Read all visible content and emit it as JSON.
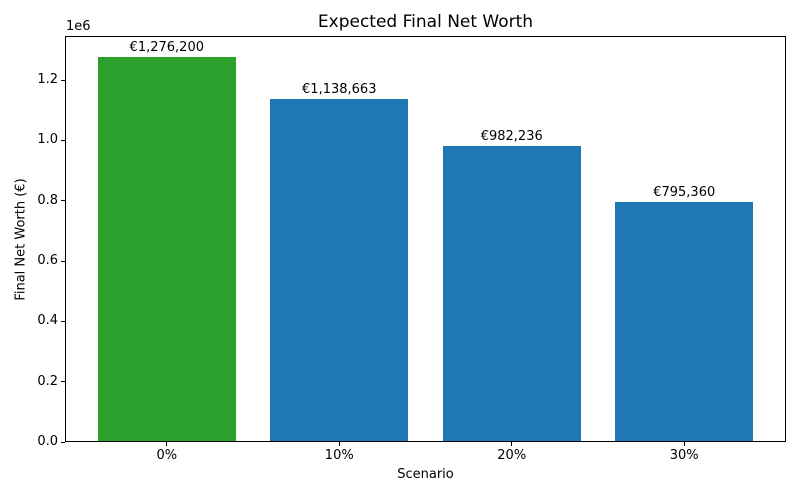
{
  "chart_data": {
    "type": "bar",
    "title": "Expected Final Net Worth",
    "xlabel": "Scenario",
    "ylabel": "Final Net Worth (€)",
    "y_offset_text": "1e6",
    "categories": [
      "0%",
      "10%",
      "20%",
      "30%"
    ],
    "values": [
      1276200,
      1138663,
      982236,
      795360
    ],
    "bar_labels": [
      "€1,276,200",
      "€1,138,663",
      "€982,236",
      "€795,360"
    ],
    "bar_colors": [
      "#2ca02c",
      "#1f77b4",
      "#1f77b4",
      "#1f77b4"
    ],
    "bar_width": 0.8,
    "ylim": [
      0,
      1346000
    ],
    "yticks": [
      0,
      200000,
      400000,
      600000,
      800000,
      1000000,
      1200000
    ],
    "ytick_labels": [
      "0.0",
      "0.2",
      "0.4",
      "0.6",
      "0.8",
      "1.0",
      "1.2"
    ],
    "grid": false,
    "legend": null,
    "spine_color": "#000000",
    "background_color": "#ffffff"
  }
}
